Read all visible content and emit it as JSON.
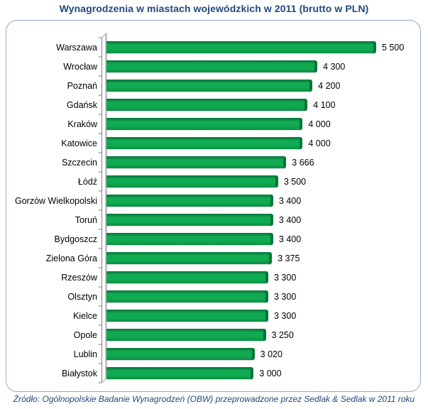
{
  "title": "Wynagrodzenia w miastach wojewódzkich w 2011 (brutto w PLN)",
  "footer": "Źródło: Ogólnopolskie Badanie Wynagrodzeń (OBW) przeprowadzone  przez  Sedlak & Sedlak w 2011 roku",
  "colors": {
    "title_text": "#1F497D",
    "footer_text": "#1F497D",
    "bar_green": "#0FA750",
    "bar_edge_dark": "#06763A",
    "box_border": "#8FACC9",
    "axis_line": "#7F7F7F",
    "wall_line": "#A8A8A8",
    "label_text": "#000000"
  },
  "chart_data": {
    "type": "bar",
    "orientation": "horizontal",
    "title": "Wynagrodzenia w miastach wojewódzkich w 2011 (brutto w PLN)",
    "xlabel": "",
    "ylabel": "",
    "xlim": [
      0,
      5500
    ],
    "grid": false,
    "legend": false,
    "source_note": "Źródło: Ogólnopolskie Badanie Wynagrodzeń (OBW) przeprowadzone  przez  Sedlak & Sedlak w 2011 roku",
    "categories": [
      "Warszawa",
      "Wrocław",
      "Poznań",
      "Gdańsk",
      "Kraków",
      "Katowice",
      "Szczecin",
      "Łódź",
      "Gorzów Wielkopolski",
      "Toruń",
      "Bydgoszcz",
      "Zielona Góra",
      "Rzeszów",
      "Olsztyn",
      "Kielce",
      "Opole",
      "Lublin",
      "Białystok"
    ],
    "values": [
      5500,
      4300,
      4200,
      4100,
      4000,
      4000,
      3666,
      3500,
      3400,
      3400,
      3400,
      3375,
      3300,
      3300,
      3300,
      3250,
      3020,
      3000
    ],
    "value_labels": [
      "5 500",
      "4 300",
      "4 200",
      "4 100",
      "4 000",
      "4 000",
      "3 666",
      "3 500",
      "3 400",
      "3 400",
      "3 400",
      "3 375",
      "3 300",
      "3 300",
      "3 300",
      "3 250",
      "3 020",
      "3 000"
    ]
  }
}
